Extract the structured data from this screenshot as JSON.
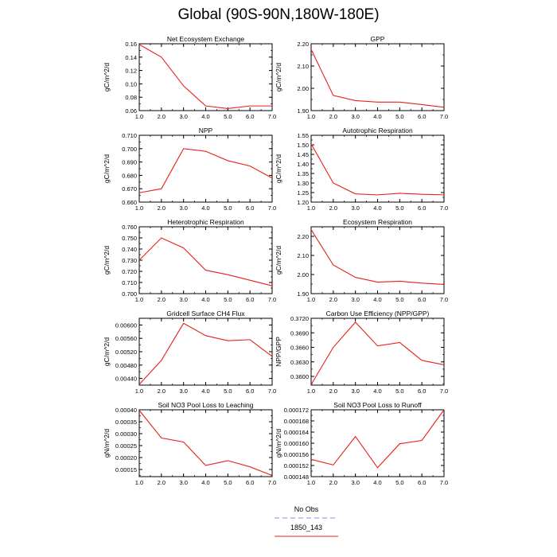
{
  "title": "Global (90S-90N,180W-180E)",
  "colors": {
    "series": "#e8201c",
    "obs": "#8b8bee",
    "axis": "#000000"
  },
  "legend": [
    {
      "label": "No Obs",
      "style": "dashed",
      "color": "#8b8bee"
    },
    {
      "label": "1850_143",
      "style": "solid",
      "color": "#e8201c"
    }
  ],
  "chart_data": [
    {
      "type": "line",
      "title": "Net Ecosystem Exchange",
      "ylabel": "gC/m^2/d",
      "x": [
        1,
        2,
        3,
        4,
        5,
        6,
        7
      ],
      "xlim": [
        1,
        7
      ],
      "ylim": [
        0.06,
        0.16
      ],
      "xticks": [
        "1.0",
        "2.0",
        "3.0",
        "4.0",
        "5.0",
        "6.0",
        "7.0"
      ],
      "xtick_values": [
        1,
        2,
        3,
        4,
        5,
        6,
        7
      ],
      "yticks": [
        "0.06",
        "0.08",
        "0.10",
        "0.12",
        "0.14",
        "0.16"
      ],
      "ytick_values": [
        0.06,
        0.08,
        0.1,
        0.12,
        0.14,
        0.16
      ],
      "series": [
        {
          "name": "1850_143",
          "values": [
            0.159,
            0.14,
            0.097,
            0.067,
            0.063,
            0.067,
            0.067
          ]
        }
      ]
    },
    {
      "type": "line",
      "title": "GPP",
      "ylabel": "gC/m^2/d",
      "x": [
        1,
        2,
        3,
        4,
        5,
        6,
        7
      ],
      "xlim": [
        1,
        7
      ],
      "ylim": [
        1.9,
        2.2
      ],
      "xticks": [
        "1.0",
        "2.0",
        "3.0",
        "4.0",
        "5.0",
        "6.0",
        "7.0"
      ],
      "xtick_values": [
        1,
        2,
        3,
        4,
        5,
        6,
        7
      ],
      "yticks": [
        "1.90",
        "2.00",
        "2.10",
        "2.20"
      ],
      "ytick_values": [
        1.9,
        2.0,
        2.1,
        2.2
      ],
      "series": [
        {
          "name": "1850_143",
          "values": [
            2.175,
            1.968,
            1.945,
            1.938,
            1.938,
            1.927,
            1.915
          ]
        }
      ]
    },
    {
      "type": "line",
      "title": "NPP",
      "ylabel": "gC/m^2/d",
      "x": [
        1,
        2,
        3,
        4,
        5,
        6,
        7
      ],
      "xlim": [
        1,
        7
      ],
      "ylim": [
        0.66,
        0.71
      ],
      "xticks": [
        "1.0",
        "2.0",
        "3.0",
        "4.0",
        "5.0",
        "6.0",
        "7.0"
      ],
      "xtick_values": [
        1,
        2,
        3,
        4,
        5,
        6,
        7
      ],
      "yticks": [
        "0.660",
        "0.670",
        "0.680",
        "0.690",
        "0.700",
        "0.710"
      ],
      "ytick_values": [
        0.66,
        0.67,
        0.68,
        0.69,
        0.7,
        0.71
      ],
      "series": [
        {
          "name": "1850_143",
          "values": [
            0.667,
            0.67,
            0.7,
            0.698,
            0.691,
            0.687,
            0.678
          ]
        }
      ]
    },
    {
      "type": "line",
      "title": "Autotrophic Respiration",
      "ylabel": "gC/m^2/d",
      "x": [
        1,
        2,
        3,
        4,
        5,
        6,
        7
      ],
      "xlim": [
        1,
        7
      ],
      "ylim": [
        1.2,
        1.55
      ],
      "xticks": [
        "1.0",
        "2.0",
        "3.0",
        "4.0",
        "5.0",
        "6.0",
        "7.0"
      ],
      "xtick_values": [
        1,
        2,
        3,
        4,
        5,
        6,
        7
      ],
      "yticks": [
        "1.20",
        "1.25",
        "1.30",
        "1.35",
        "1.40",
        "1.45",
        "1.50",
        "1.55"
      ],
      "ytick_values": [
        1.2,
        1.25,
        1.3,
        1.35,
        1.4,
        1.45,
        1.5,
        1.55
      ],
      "series": [
        {
          "name": "1850_143",
          "values": [
            1.505,
            1.3,
            1.243,
            1.238,
            1.246,
            1.241,
            1.238
          ]
        }
      ]
    },
    {
      "type": "line",
      "title": "Heterotrophic Respiration",
      "ylabel": "gC/m^2/d",
      "x": [
        1,
        2,
        3,
        4,
        5,
        6,
        7
      ],
      "xlim": [
        1,
        7
      ],
      "ylim": [
        0.7,
        0.76
      ],
      "xticks": [
        "1.0",
        "2.0",
        "3.0",
        "4.0",
        "5.0",
        "6.0",
        "7.0"
      ],
      "xtick_values": [
        1,
        2,
        3,
        4,
        5,
        6,
        7
      ],
      "yticks": [
        "0.700",
        "0.710",
        "0.720",
        "0.730",
        "0.740",
        "0.750",
        "0.760"
      ],
      "ytick_values": [
        0.7,
        0.71,
        0.72,
        0.73,
        0.74,
        0.75,
        0.76
      ],
      "series": [
        {
          "name": "1850_143",
          "values": [
            0.73,
            0.75,
            0.741,
            0.721,
            0.717,
            0.712,
            0.707
          ]
        }
      ]
    },
    {
      "type": "line",
      "title": "Ecosystem Respiration",
      "ylabel": "gC/m^2/d",
      "x": [
        1,
        2,
        3,
        4,
        5,
        6,
        7
      ],
      "xlim": [
        1,
        7
      ],
      "ylim": [
        1.9,
        2.25
      ],
      "xticks": [
        "1.0",
        "2.0",
        "3.0",
        "4.0",
        "5.0",
        "6.0",
        "7.0"
      ],
      "xtick_values": [
        1,
        2,
        3,
        4,
        5,
        6,
        7
      ],
      "yticks": [
        "1.90",
        "2.00",
        "2.10",
        "2.20"
      ],
      "ytick_values": [
        1.9,
        2.0,
        2.1,
        2.2
      ],
      "series": [
        {
          "name": "1850_143",
          "values": [
            2.235,
            2.05,
            1.985,
            1.96,
            1.965,
            1.955,
            1.948
          ]
        }
      ]
    },
    {
      "type": "line",
      "title": "Gridcell Surface CH4 Flux",
      "ylabel": "gC/m^2/d",
      "x": [
        1,
        2,
        3,
        4,
        5,
        6,
        7
      ],
      "xlim": [
        1,
        7
      ],
      "ylim": [
        0.0042,
        0.0062
      ],
      "xticks": [
        "1.0",
        "2.0",
        "3.0",
        "4.0",
        "5.0",
        "6.0",
        "7.0"
      ],
      "xtick_values": [
        1,
        2,
        3,
        4,
        5,
        6,
        7
      ],
      "yticks": [
        "0.00440",
        "0.00480",
        "0.00520",
        "0.00560",
        "0.00600"
      ],
      "ytick_values": [
        0.0044,
        0.0048,
        0.0052,
        0.0056,
        0.006
      ],
      "series": [
        {
          "name": "1850_143",
          "values": [
            0.00422,
            0.00494,
            0.00605,
            0.00568,
            0.00553,
            0.00556,
            0.00506
          ]
        }
      ]
    },
    {
      "type": "line",
      "title": "Carbon Use Efficiency (NPP/GPP)",
      "ylabel": "NPP/GPP",
      "x": [
        1,
        2,
        3,
        4,
        5,
        6,
        7
      ],
      "xlim": [
        1,
        7
      ],
      "ylim": [
        0.3582,
        0.372
      ],
      "xticks": [
        "1.0",
        "2.0",
        "3.0",
        "4.0",
        "5.0",
        "6.0",
        "7.0"
      ],
      "xtick_values": [
        1,
        2,
        3,
        4,
        5,
        6,
        7
      ],
      "yticks": [
        "0.3600",
        "0.3630",
        "0.3660",
        "0.3690",
        "0.3720"
      ],
      "ytick_values": [
        0.36,
        0.363,
        0.366,
        0.369,
        0.372
      ],
      "series": [
        {
          "name": "1850_143",
          "values": [
            0.3583,
            0.366,
            0.3712,
            0.3663,
            0.367,
            0.3633,
            0.3624
          ]
        }
      ]
    },
    {
      "type": "line",
      "title": "Soil NO3 Pool Loss to Leaching",
      "ylabel": "gN/m^2/d",
      "x": [
        1,
        2,
        3,
        4,
        5,
        6,
        7
      ],
      "xlim": [
        1,
        7
      ],
      "ylim": [
        0.00012,
        0.0004
      ],
      "xticks": [
        "1.0",
        "2.0",
        "3.0",
        "4.0",
        "5.0",
        "6.0",
        "7.0"
      ],
      "xtick_values": [
        1,
        2,
        3,
        4,
        5,
        6,
        7
      ],
      "yticks": [
        "0.00015",
        "0.00020",
        "0.00025",
        "0.00030",
        "0.00035",
        "0.00040"
      ],
      "ytick_values": [
        0.00015,
        0.0002,
        0.00025,
        0.0003,
        0.00035,
        0.0004
      ],
      "series": [
        {
          "name": "1850_143",
          "values": [
            0.000398,
            0.000282,
            0.000265,
            0.000167,
            0.000187,
            0.000161,
            0.000125
          ]
        }
      ]
    },
    {
      "type": "line",
      "title": "Soil NO3 Pool Loss to Runoff",
      "ylabel": "gN/m^2/d",
      "x": [
        1,
        2,
        3,
        4,
        5,
        6,
        7
      ],
      "xlim": [
        1,
        7
      ],
      "ylim": [
        0.000148,
        0.000172
      ],
      "xticks": [
        "1.0",
        "2.0",
        "3.0",
        "4.0",
        "5.0",
        "6.0",
        "7.0"
      ],
      "xtick_values": [
        1,
        2,
        3,
        4,
        5,
        6,
        7
      ],
      "yticks": [
        "0.000148",
        "0.000152",
        "0.000156",
        "0.000160",
        "0.000164",
        "0.000168",
        "0.000172"
      ],
      "ytick_values": [
        0.000148,
        0.000152,
        0.000156,
        0.00016,
        0.000164,
        0.000168,
        0.000172
      ],
      "series": [
        {
          "name": "1850_143",
          "values": [
            0.0001542,
            0.0001522,
            0.0001624,
            0.0001512,
            0.0001598,
            0.000161,
            0.000172
          ]
        }
      ]
    }
  ]
}
